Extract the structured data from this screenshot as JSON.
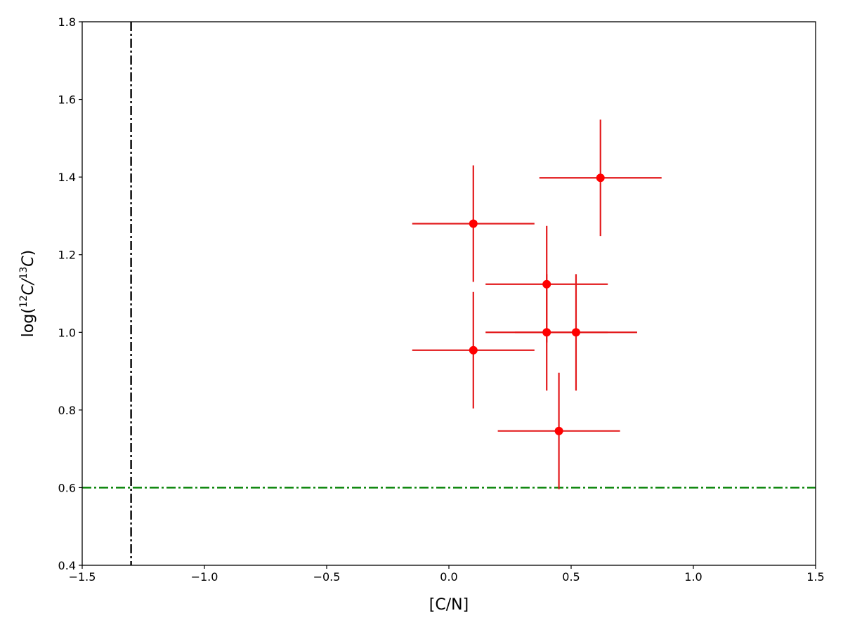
{
  "chart_data": {
    "type": "scatter",
    "xlabel": "[C/N]",
    "ylabel": {
      "prefix": "log(",
      "sup1": "12",
      "c1": "C",
      "slash": "/",
      "sup2": "13",
      "c2": "C",
      "suffix": ")"
    },
    "xlim": [
      -1.5,
      1.5
    ],
    "ylim": [
      0.4,
      1.8
    ],
    "x_ticks": [
      -1.5,
      -1.0,
      -0.5,
      0.0,
      0.5,
      1.0,
      1.5
    ],
    "x_tick_labels": [
      "−1.5",
      "−1.0",
      "−0.5",
      "0.0",
      "0.5",
      "1.0",
      "1.5"
    ],
    "y_ticks": [
      0.4,
      0.6,
      0.8,
      1.0,
      1.2,
      1.4,
      1.6,
      1.8
    ],
    "y_tick_labels": [
      "0.4",
      "0.6",
      "0.8",
      "1.0",
      "1.2",
      "1.4",
      "1.6",
      "1.8"
    ],
    "grid": false,
    "series": [
      {
        "color": "#ff0000",
        "errorbar_color": "#e31a1c",
        "points": [
          {
            "x": 0.1,
            "y": 1.28,
            "xerr": 0.25,
            "yerr": 0.15
          },
          {
            "x": 0.1,
            "y": 0.954,
            "xerr": 0.25,
            "yerr": 0.15
          },
          {
            "x": 0.4,
            "y": 1.124,
            "xerr": 0.25,
            "yerr": 0.15
          },
          {
            "x": 0.4,
            "y": 1.0,
            "xerr": 0.25,
            "yerr": 0.15
          },
          {
            "x": 0.52,
            "y": 1.0,
            "xerr": 0.25,
            "yerr": 0.15
          },
          {
            "x": 0.45,
            "y": 0.746,
            "xerr": 0.25,
            "yerr": 0.15
          },
          {
            "x": 0.62,
            "y": 1.398,
            "xerr": 0.25,
            "yerr": 0.15
          }
        ]
      }
    ],
    "reference_lines": [
      {
        "orientation": "vertical",
        "value": -1.3,
        "color": "#000000",
        "style": "dashdot"
      },
      {
        "orientation": "horizontal",
        "value": 0.6,
        "color": "#008000",
        "style": "dashdot"
      }
    ]
  }
}
